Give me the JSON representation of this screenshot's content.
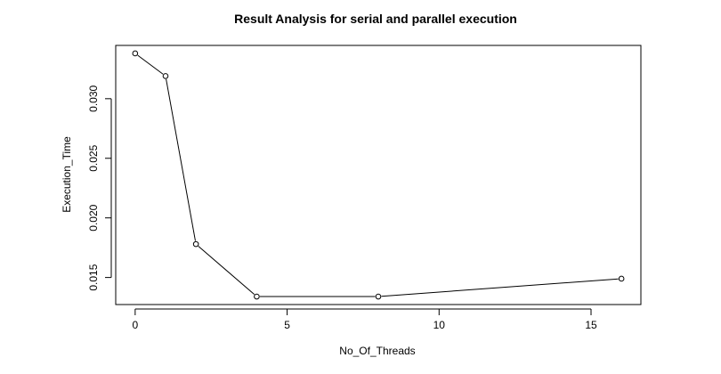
{
  "chart_data": {
    "type": "line",
    "title": "Result Analysis for serial and parallel execution",
    "xlabel": "No_Of_Threads",
    "ylabel": "Execution_Time",
    "x": [
      0,
      1,
      2,
      4,
      8,
      16
    ],
    "series": [
      {
        "values": [
          0.0338,
          0.0319,
          0.0178,
          0.0134,
          0.0134,
          0.0149
        ]
      }
    ],
    "xlim": [
      -0.64,
      16.64
    ],
    "ylim": [
      0.01273,
      0.03447
    ],
    "x_ticks": [
      0,
      5,
      10,
      15
    ],
    "x_tick_labels": [
      "0",
      "5",
      "10",
      "15"
    ],
    "y_ticks": [
      0.015,
      0.02,
      0.025,
      0.03
    ],
    "y_tick_labels": [
      "0.015",
      "0.020",
      "0.025",
      "0.030"
    ],
    "grid": false,
    "marker": "open-circle",
    "line_color": "#000000"
  }
}
